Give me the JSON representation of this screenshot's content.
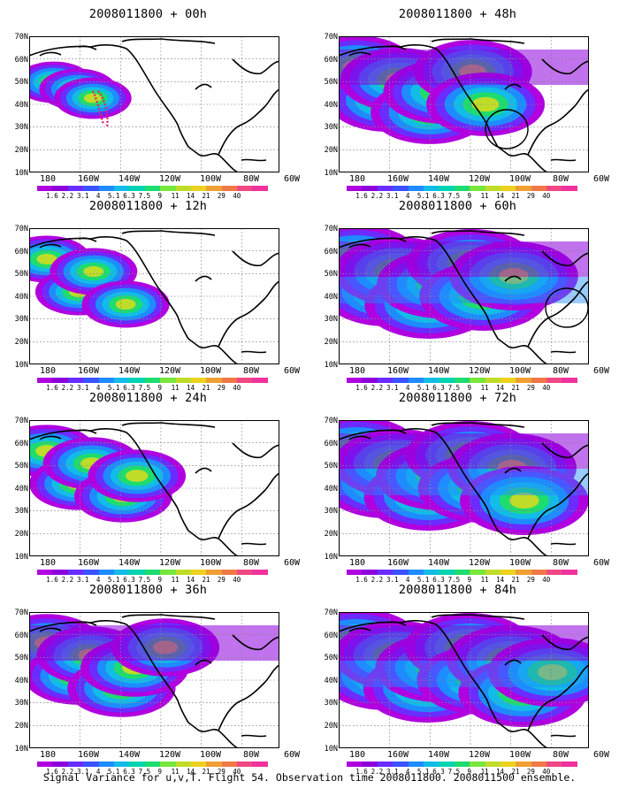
{
  "caption": "Signal Variance for u,v,T. Flight 54. Observation time 2008011800. 2008011500 ensemble.",
  "y_axis_labels": [
    "70N",
    "60N",
    "50N",
    "40N",
    "30N",
    "20N",
    "10N"
  ],
  "x_axis_labels": [
    "180",
    "160W",
    "140W",
    "120W",
    "100W",
    "80W",
    "60W"
  ],
  "colorbar": {
    "labels": [
      "1.6",
      "2.2",
      "3.1",
      "4",
      "5.1",
      "6.3",
      "7.5",
      "9",
      "11",
      "14",
      "21",
      "29",
      "40"
    ],
    "colors": [
      "#b000e0",
      "#8c00dc",
      "#6a2cff",
      "#3a52ff",
      "#1e8cff",
      "#12bce6",
      "#00d4b0",
      "#1edc6e",
      "#78e63c",
      "#bedc28",
      "#ecd21e",
      "#f0a032",
      "#f07846",
      "#f04882",
      "#f0329e"
    ]
  },
  "panels": [
    {
      "title": "2008011800 + 00h",
      "level": 0,
      "circle": null
    },
    {
      "title": "2008011800 + 48h",
      "level": 4,
      "circle": [
        190,
        105
      ]
    },
    {
      "title": "2008011800 + 12h",
      "level": 1,
      "circle": null
    },
    {
      "title": "2008011800 + 60h",
      "level": 5,
      "circle": [
        258,
        90
      ]
    },
    {
      "title": "2008011800 + 24h",
      "level": 2,
      "circle": null
    },
    {
      "title": "2008011800 + 72h",
      "level": 6,
      "circle": null
    },
    {
      "title": "2008011800 + 36h",
      "level": 3,
      "circle": null
    },
    {
      "title": "2008011800 + 84h",
      "level": 7,
      "circle": null
    }
  ]
}
